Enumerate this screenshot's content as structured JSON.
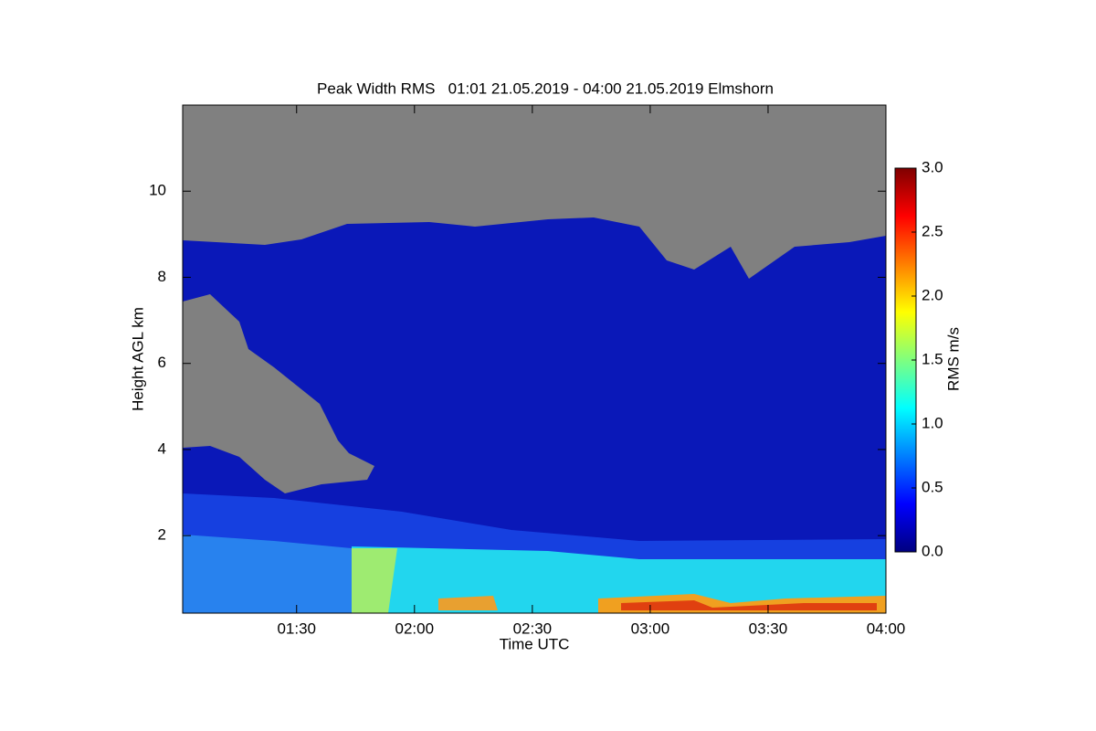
{
  "chart_data": {
    "type": "heatmap",
    "title": "Peak Width RMS   01:01 21.05.2019 - 04:00 21.05.2019 Elmshorn",
    "x_label": "Time UTC",
    "y_label": "Height AGL km",
    "xlim": [
      61,
      240
    ],
    "xticks": [
      {
        "value": 90,
        "label": "01:30"
      },
      {
        "value": 120,
        "label": "02:00"
      },
      {
        "value": 150,
        "label": "02:30"
      },
      {
        "value": 180,
        "label": "03:00"
      },
      {
        "value": 210,
        "label": "03:30"
      },
      {
        "value": 240,
        "label": "04:00"
      }
    ],
    "ylim": [
      0.2,
      12
    ],
    "yticks": [
      2,
      4,
      6,
      8,
      10
    ],
    "colorbar": {
      "label": "RMS m/s",
      "lim": [
        0,
        3
      ],
      "colormap": "jet",
      "ticks": [
        {
          "value": 0,
          "label": "0.0"
        },
        {
          "value": 0.5,
          "label": "0.5"
        },
        {
          "value": 1,
          "label": "1.0"
        },
        {
          "value": 1.5,
          "label": "1.5"
        },
        {
          "value": 2,
          "label": "2.0"
        },
        {
          "value": 2.5,
          "label": "2.5"
        },
        {
          "value": 3,
          "label": "3.0"
        }
      ]
    }
  }
}
